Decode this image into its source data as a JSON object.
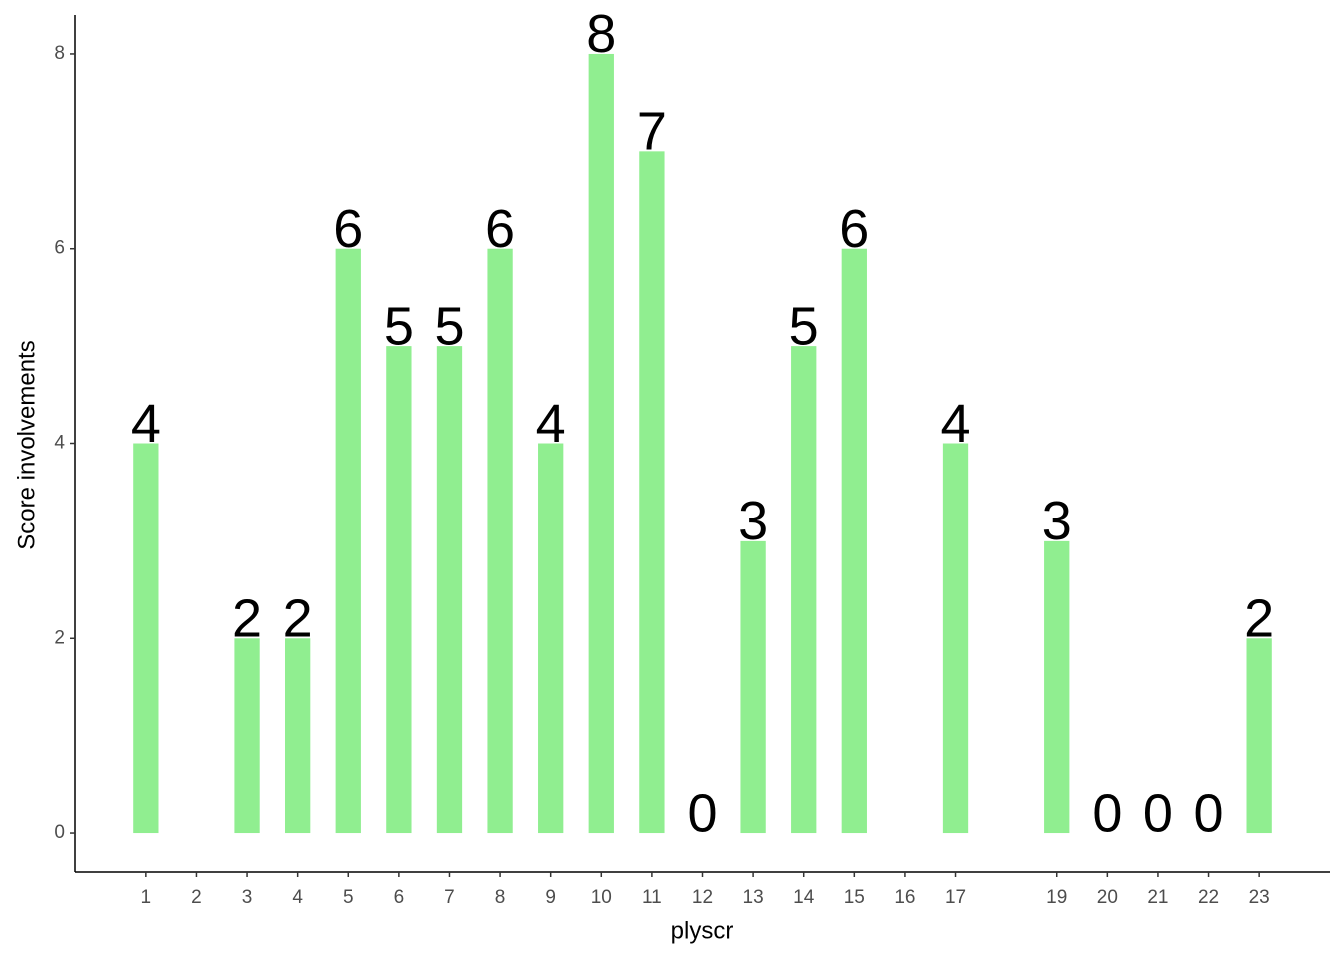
{
  "chart_data": {
    "type": "bar",
    "x_label": "plyscr",
    "y_label": "Score involvements",
    "x": [
      1,
      3,
      4,
      5,
      6,
      7,
      8,
      9,
      10,
      11,
      12,
      13,
      14,
      15,
      17,
      19,
      20,
      21,
      22,
      23
    ],
    "values": [
      4,
      2,
      2,
      6,
      5,
      5,
      6,
      4,
      8,
      7,
      0,
      3,
      5,
      6,
      4,
      3,
      0,
      0,
      0,
      2
    ],
    "color": "#90ee90",
    "xlim": [
      -0.4,
      24.4
    ],
    "xticks": [
      1,
      2,
      3,
      4,
      5,
      6,
      7,
      8,
      9,
      10,
      11,
      12,
      13,
      14,
      15,
      16,
      17,
      19,
      20,
      21,
      22,
      23
    ],
    "ylim": [
      -0.4,
      8.4
    ],
    "yticks": [
      0,
      2,
      4,
      6,
      8
    ],
    "grid": false
  }
}
